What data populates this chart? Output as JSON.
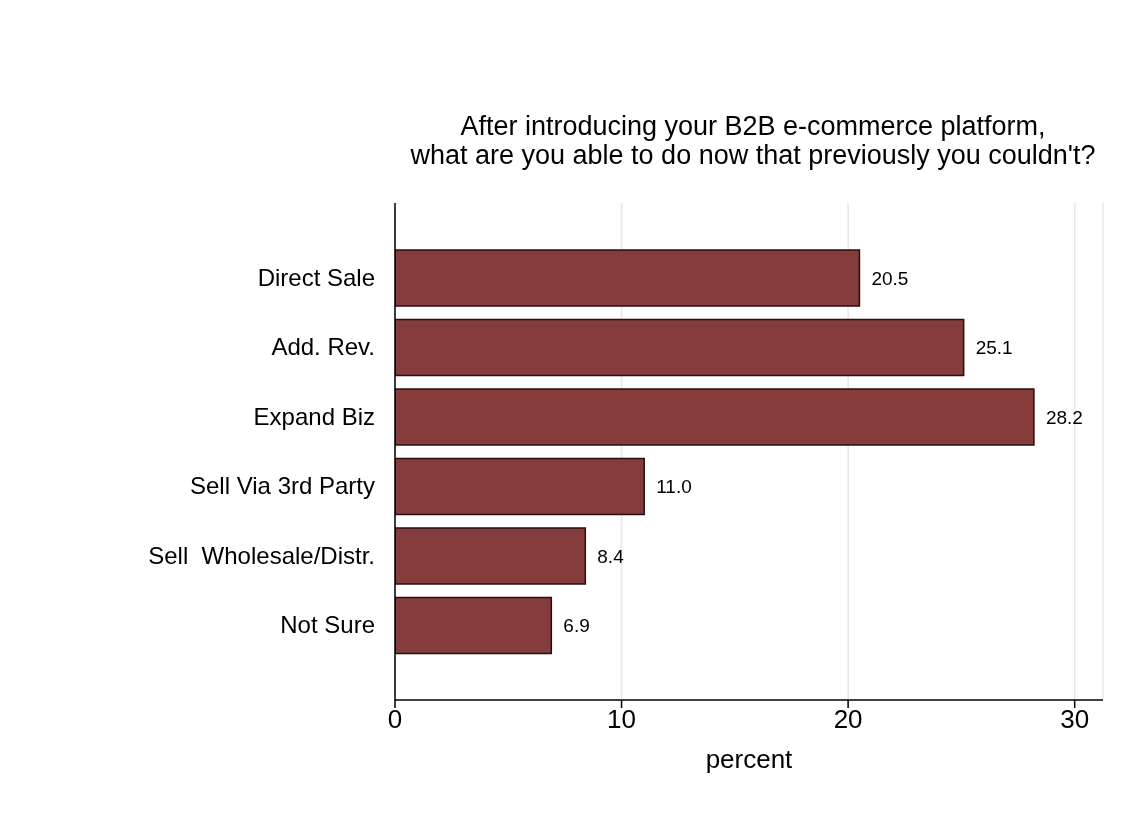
{
  "chart_data": {
    "type": "bar",
    "orientation": "horizontal",
    "title": "After introducing your B2B e-commerce platform,\nwhat are you able to do now that previously you couldn't?",
    "xlabel": "percent",
    "categories": [
      "Direct Sale",
      "Add. Rev.",
      "Expand Biz",
      "Sell Via 3rd Party",
      "Sell  Wholesale/Distr.",
      "Not Sure"
    ],
    "values": [
      20.5,
      25.1,
      28.2,
      11.0,
      8.4,
      6.9
    ],
    "value_labels": [
      "20.5",
      "25.1",
      "28.2",
      "11.0",
      "8.4",
      "6.9"
    ],
    "color": "#843c3c",
    "xlim": [
      0,
      31.25
    ],
    "xticks": [
      0,
      10,
      20,
      30
    ],
    "grid": "x"
  }
}
